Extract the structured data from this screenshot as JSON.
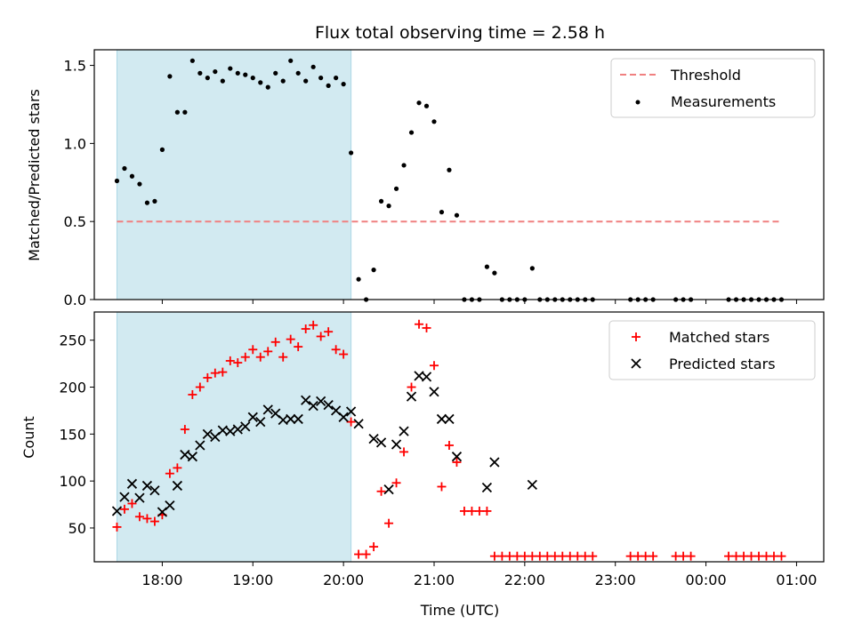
{
  "title": "Flux total observing time = 2.58 h",
  "xlabel": "Time (UTC)",
  "x_tick_labels": [
    "18:00",
    "19:00",
    "20:00",
    "21:00",
    "22:00",
    "23:00",
    "00:00",
    "01:00"
  ],
  "colors": {
    "shaded_window": "#add8e6",
    "threshold": "#f08080",
    "measurements": "#000000",
    "matched": "#ff0000",
    "predicted": "#000000"
  },
  "chart_data": [
    {
      "type": "scatter",
      "ylabel": "Matched/Predicted stars",
      "ylim": [
        0,
        1.6
      ],
      "y_ticks": [
        "0.0",
        "0.5",
        "1.0",
        "1.5"
      ],
      "legend_position": "top-right",
      "grid": false,
      "shaded_span": {
        "x_start": "17:30",
        "x_end": "20:05"
      },
      "threshold": {
        "name": "Threshold",
        "value": 0.5,
        "x_start": "17:30",
        "x_end": "00:50"
      },
      "series": [
        {
          "name": "Measurements",
          "marker": "dot",
          "points": [
            [
              "17:30",
              0.76
            ],
            [
              "17:35",
              0.84
            ],
            [
              "17:40",
              0.79
            ],
            [
              "17:45",
              0.74
            ],
            [
              "17:50",
              0.62
            ],
            [
              "17:55",
              0.63
            ],
            [
              "18:00",
              0.96
            ],
            [
              "18:05",
              1.43
            ],
            [
              "18:10",
              1.2
            ],
            [
              "18:15",
              1.2
            ],
            [
              "18:20",
              1.53
            ],
            [
              "18:25",
              1.45
            ],
            [
              "18:30",
              1.42
            ],
            [
              "18:35",
              1.46
            ],
            [
              "18:40",
              1.4
            ],
            [
              "18:45",
              1.48
            ],
            [
              "18:50",
              1.45
            ],
            [
              "18:55",
              1.44
            ],
            [
              "19:00",
              1.42
            ],
            [
              "19:05",
              1.39
            ],
            [
              "19:10",
              1.36
            ],
            [
              "19:15",
              1.45
            ],
            [
              "19:20",
              1.4
            ],
            [
              "19:25",
              1.53
            ],
            [
              "19:30",
              1.45
            ],
            [
              "19:35",
              1.4
            ],
            [
              "19:40",
              1.49
            ],
            [
              "19:45",
              1.42
            ],
            [
              "19:50",
              1.37
            ],
            [
              "19:55",
              1.42
            ],
            [
              "20:00",
              1.38
            ],
            [
              "20:05",
              0.94
            ],
            [
              "20:10",
              0.13
            ],
            [
              "20:15",
              0.0
            ],
            [
              "20:20",
              0.19
            ],
            [
              "20:25",
              0.63
            ],
            [
              "20:30",
              0.6
            ],
            [
              "20:35",
              0.71
            ],
            [
              "20:40",
              0.86
            ],
            [
              "20:45",
              1.07
            ],
            [
              "20:50",
              1.26
            ],
            [
              "20:55",
              1.24
            ],
            [
              "21:00",
              1.14
            ],
            [
              "21:05",
              0.56
            ],
            [
              "21:10",
              0.83
            ],
            [
              "21:15",
              0.54
            ],
            [
              "21:20",
              0.0
            ],
            [
              "21:25",
              0.0
            ],
            [
              "21:30",
              0.0
            ],
            [
              "21:35",
              0.21
            ],
            [
              "21:40",
              0.17
            ],
            [
              "21:45",
              0.0
            ],
            [
              "21:50",
              0.0
            ],
            [
              "21:55",
              0.0
            ],
            [
              "22:00",
              0.0
            ],
            [
              "22:05",
              0.2
            ],
            [
              "22:10",
              0.0
            ],
            [
              "22:15",
              0.0
            ],
            [
              "22:20",
              0.0
            ],
            [
              "22:25",
              0.0
            ],
            [
              "22:30",
              0.0
            ],
            [
              "22:35",
              0.0
            ],
            [
              "22:40",
              0.0
            ],
            [
              "22:45",
              0.0
            ],
            [
              "23:10",
              0.0
            ],
            [
              "23:15",
              0.0
            ],
            [
              "23:20",
              0.0
            ],
            [
              "23:25",
              0.0
            ],
            [
              "23:40",
              0.0
            ],
            [
              "23:45",
              0.0
            ],
            [
              "23:50",
              0.0
            ],
            [
              "00:15",
              0.0
            ],
            [
              "00:20",
              0.0
            ],
            [
              "00:25",
              0.0
            ],
            [
              "00:30",
              0.0
            ],
            [
              "00:35",
              0.0
            ],
            [
              "00:40",
              0.0
            ],
            [
              "00:45",
              0.0
            ],
            [
              "00:50",
              0.0
            ]
          ]
        }
      ]
    },
    {
      "type": "scatter",
      "ylabel": "Count",
      "ylim": [
        14,
        280
      ],
      "y_ticks": [
        "50",
        "100",
        "150",
        "200",
        "250"
      ],
      "legend_position": "top-right",
      "grid": false,
      "shaded_span": {
        "x_start": "17:30",
        "x_end": "20:05"
      },
      "series": [
        {
          "name": "Matched stars",
          "marker": "plus",
          "points": [
            [
              "17:30",
              51
            ],
            [
              "17:35",
              70
            ],
            [
              "17:40",
              76
            ],
            [
              "17:45",
              62
            ],
            [
              "17:50",
              60
            ],
            [
              "17:55",
              57
            ],
            [
              "18:00",
              64
            ],
            [
              "18:05",
              108
            ],
            [
              "18:10",
              114
            ],
            [
              "18:15",
              155
            ],
            [
              "18:20",
              192
            ],
            [
              "18:25",
              200
            ],
            [
              "18:30",
              210
            ],
            [
              "18:35",
              215
            ],
            [
              "18:40",
              216
            ],
            [
              "18:45",
              228
            ],
            [
              "18:50",
              226
            ],
            [
              "18:55",
              232
            ],
            [
              "19:00",
              240
            ],
            [
              "19:05",
              232
            ],
            [
              "19:10",
              238
            ],
            [
              "19:15",
              248
            ],
            [
              "19:20",
              232
            ],
            [
              "19:25",
              251
            ],
            [
              "19:30",
              243
            ],
            [
              "19:35",
              262
            ],
            [
              "19:40",
              266
            ],
            [
              "19:45",
              254
            ],
            [
              "19:50",
              259
            ],
            [
              "19:55",
              240
            ],
            [
              "20:00",
              235
            ],
            [
              "20:05",
              163
            ],
            [
              "20:10",
              22
            ],
            [
              "20:15",
              22
            ],
            [
              "20:20",
              30
            ],
            [
              "20:25",
              89
            ],
            [
              "20:30",
              55
            ],
            [
              "20:35",
              98
            ],
            [
              "20:40",
              131
            ],
            [
              "20:45",
              200
            ],
            [
              "20:50",
              267
            ],
            [
              "20:55",
              263
            ],
            [
              "21:00",
              223
            ],
            [
              "21:05",
              94
            ],
            [
              "21:10",
              138
            ],
            [
              "21:15",
              120
            ],
            [
              "21:20",
              68
            ],
            [
              "21:25",
              68
            ],
            [
              "21:30",
              68
            ],
            [
              "21:35",
              68
            ],
            [
              "21:40",
              20
            ],
            [
              "21:45",
              20
            ],
            [
              "21:50",
              20
            ],
            [
              "21:55",
              20
            ],
            [
              "22:00",
              20
            ],
            [
              "22:05",
              20
            ],
            [
              "22:10",
              20
            ],
            [
              "22:15",
              20
            ],
            [
              "22:20",
              20
            ],
            [
              "22:25",
              20
            ],
            [
              "22:30",
              20
            ],
            [
              "22:35",
              20
            ],
            [
              "22:40",
              20
            ],
            [
              "22:45",
              20
            ],
            [
              "23:10",
              20
            ],
            [
              "23:15",
              20
            ],
            [
              "23:20",
              20
            ],
            [
              "23:25",
              20
            ],
            [
              "23:40",
              20
            ],
            [
              "23:45",
              20
            ],
            [
              "23:50",
              20
            ],
            [
              "00:15",
              20
            ],
            [
              "00:20",
              20
            ],
            [
              "00:25",
              20
            ],
            [
              "00:30",
              20
            ],
            [
              "00:35",
              20
            ],
            [
              "00:40",
              20
            ],
            [
              "00:45",
              20
            ],
            [
              "00:50",
              20
            ]
          ]
        },
        {
          "name": "Predicted stars",
          "marker": "x",
          "points": [
            [
              "17:30",
              68
            ],
            [
              "17:35",
              83
            ],
            [
              "17:40",
              97
            ],
            [
              "17:45",
              82
            ],
            [
              "17:50",
              95
            ],
            [
              "17:55",
              90
            ],
            [
              "18:00",
              67
            ],
            [
              "18:05",
              74
            ],
            [
              "18:10",
              95
            ],
            [
              "18:15",
              128
            ],
            [
              "18:20",
              126
            ],
            [
              "18:25",
              138
            ],
            [
              "18:30",
              150
            ],
            [
              "18:35",
              147
            ],
            [
              "18:40",
              154
            ],
            [
              "18:45",
              153
            ],
            [
              "18:50",
              155
            ],
            [
              "18:55",
              158
            ],
            [
              "19:00",
              168
            ],
            [
              "19:05",
              163
            ],
            [
              "19:10",
              176
            ],
            [
              "19:15",
              172
            ],
            [
              "19:20",
              165
            ],
            [
              "19:25",
              166
            ],
            [
              "19:30",
              166
            ],
            [
              "19:35",
              186
            ],
            [
              "19:40",
              180
            ],
            [
              "19:45",
              185
            ],
            [
              "19:50",
              181
            ],
            [
              "19:55",
              175
            ],
            [
              "20:00",
              168
            ],
            [
              "20:05",
              174
            ],
            [
              "20:10",
              161
            ],
            [
              "20:20",
              145
            ],
            [
              "20:25",
              141
            ],
            [
              "20:30",
              91
            ],
            [
              "20:35",
              139
            ],
            [
              "20:40",
              153
            ],
            [
              "20:45",
              190
            ],
            [
              "20:50",
              212
            ],
            [
              "20:55",
              211
            ],
            [
              "21:00",
              195
            ],
            [
              "21:05",
              166
            ],
            [
              "21:10",
              166
            ],
            [
              "21:15",
              126
            ],
            [
              "21:35",
              93
            ],
            [
              "21:40",
              120
            ],
            [
              "22:05",
              96
            ]
          ]
        }
      ]
    }
  ]
}
